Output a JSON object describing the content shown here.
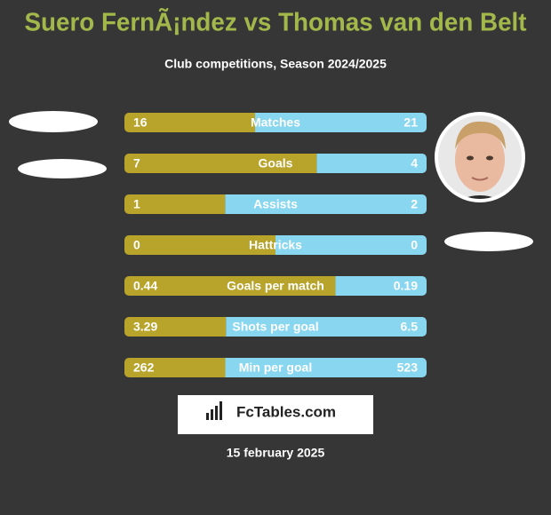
{
  "header": {
    "title": "Suero FernÃ¡ndez vs Thomas van den Belt",
    "subtitle": "Club competitions, Season 2024/2025"
  },
  "rows": [
    {
      "label": "Matches",
      "left": 16,
      "right": 21
    },
    {
      "label": "Goals",
      "left": 7,
      "right": 4
    },
    {
      "label": "Assists",
      "left": 1,
      "right": 2
    },
    {
      "label": "Hattricks",
      "left": 0,
      "right": 0
    },
    {
      "label": "Goals per match",
      "left": 0.44,
      "right": 0.19
    },
    {
      "label": "Shots per goal",
      "left": 3.29,
      "right": 6.5
    },
    {
      "label": "Min per goal",
      "left": 262,
      "right": 523
    }
  ],
  "colors": {
    "left": "#b8a32b",
    "right": "#88d6ef"
  },
  "logo": "FcTables.com",
  "date": "15 february 2025"
}
